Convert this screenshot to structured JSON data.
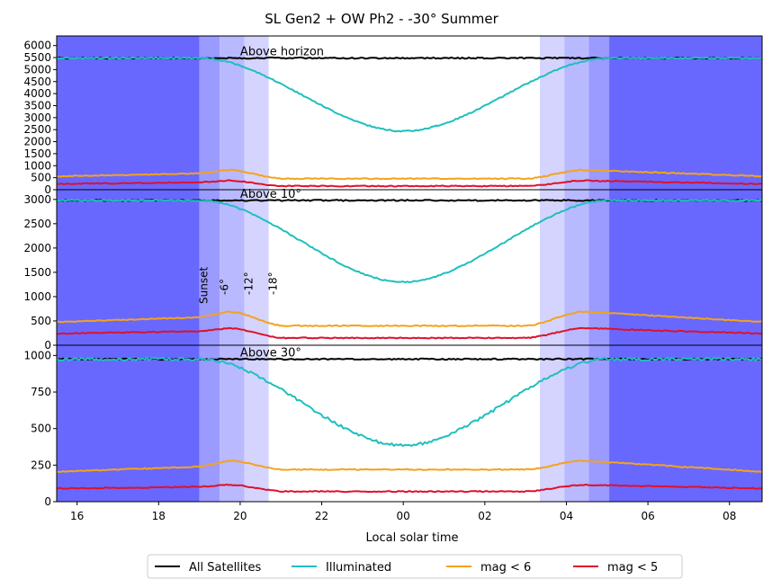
{
  "chart_data": {
    "type": "line",
    "title": "SL Gen2 + OW Ph2  -  -30° Summer",
    "xlabel": "Local solar time",
    "x_range": [
      15.5,
      32.8
    ],
    "x_ticks": [
      16,
      18,
      20,
      22,
      24,
      26,
      28,
      30,
      32
    ],
    "x_tick_labels": [
      "16",
      "18",
      "20",
      "22",
      "00",
      "02",
      "04",
      "06",
      "08"
    ],
    "twilight": {
      "labels": [
        "Sunset",
        "-6°",
        "-12°",
        "-18°"
      ],
      "evening_edges": [
        19.0,
        19.5,
        20.1,
        20.7
      ],
      "morning_edges": [
        27.35,
        27.95,
        28.55,
        29.05
      ],
      "colors": {
        "night": "#6868ff",
        "astro": "#9a9aff",
        "nautical": "#b9b9ff",
        "civil": "#d4d4ff"
      }
    },
    "series_styles": [
      {
        "name": "All Satellites",
        "color": "#000000"
      },
      {
        "name": "Illuminated",
        "color": "#1fbfbf"
      },
      {
        "name": "mag < 6",
        "color": "#f5a21a"
      },
      {
        "name": "mag < 5",
        "color": "#e0102a"
      }
    ],
    "legend_position": "bottom-center",
    "panels": [
      {
        "label": "Above horizon",
        "ylim": [
          0,
          6400
        ],
        "yticks": [
          0,
          500,
          1000,
          1500,
          2000,
          2500,
          3000,
          3500,
          4000,
          4500,
          5000,
          5500,
          6000
        ],
        "all": 5480,
        "illum_min": 2440,
        "mag6": {
          "base": 560,
          "peak": 820,
          "mid": 460
        },
        "mag5": {
          "base": 240,
          "peak": 380,
          "mid": 150
        }
      },
      {
        "label": "Above 10°",
        "ylim": [
          0,
          3200
        ],
        "yticks": [
          0,
          500,
          1000,
          1500,
          2000,
          2500,
          3000
        ],
        "all": 2980,
        "illum_min": 1300,
        "mag6": {
          "base": 480,
          "peak": 690,
          "mid": 400
        },
        "mag5": {
          "base": 240,
          "peak": 350,
          "mid": 150
        }
      },
      {
        "label": "Above 30°",
        "ylim": [
          0,
          1070
        ],
        "yticks": [
          0,
          250,
          500,
          750,
          1000
        ],
        "all": 975,
        "illum_min": 385,
        "mag6": {
          "base": 205,
          "peak": 280,
          "mid": 220
        },
        "mag5": {
          "base": 90,
          "peak": 115,
          "mid": 70
        }
      }
    ]
  }
}
